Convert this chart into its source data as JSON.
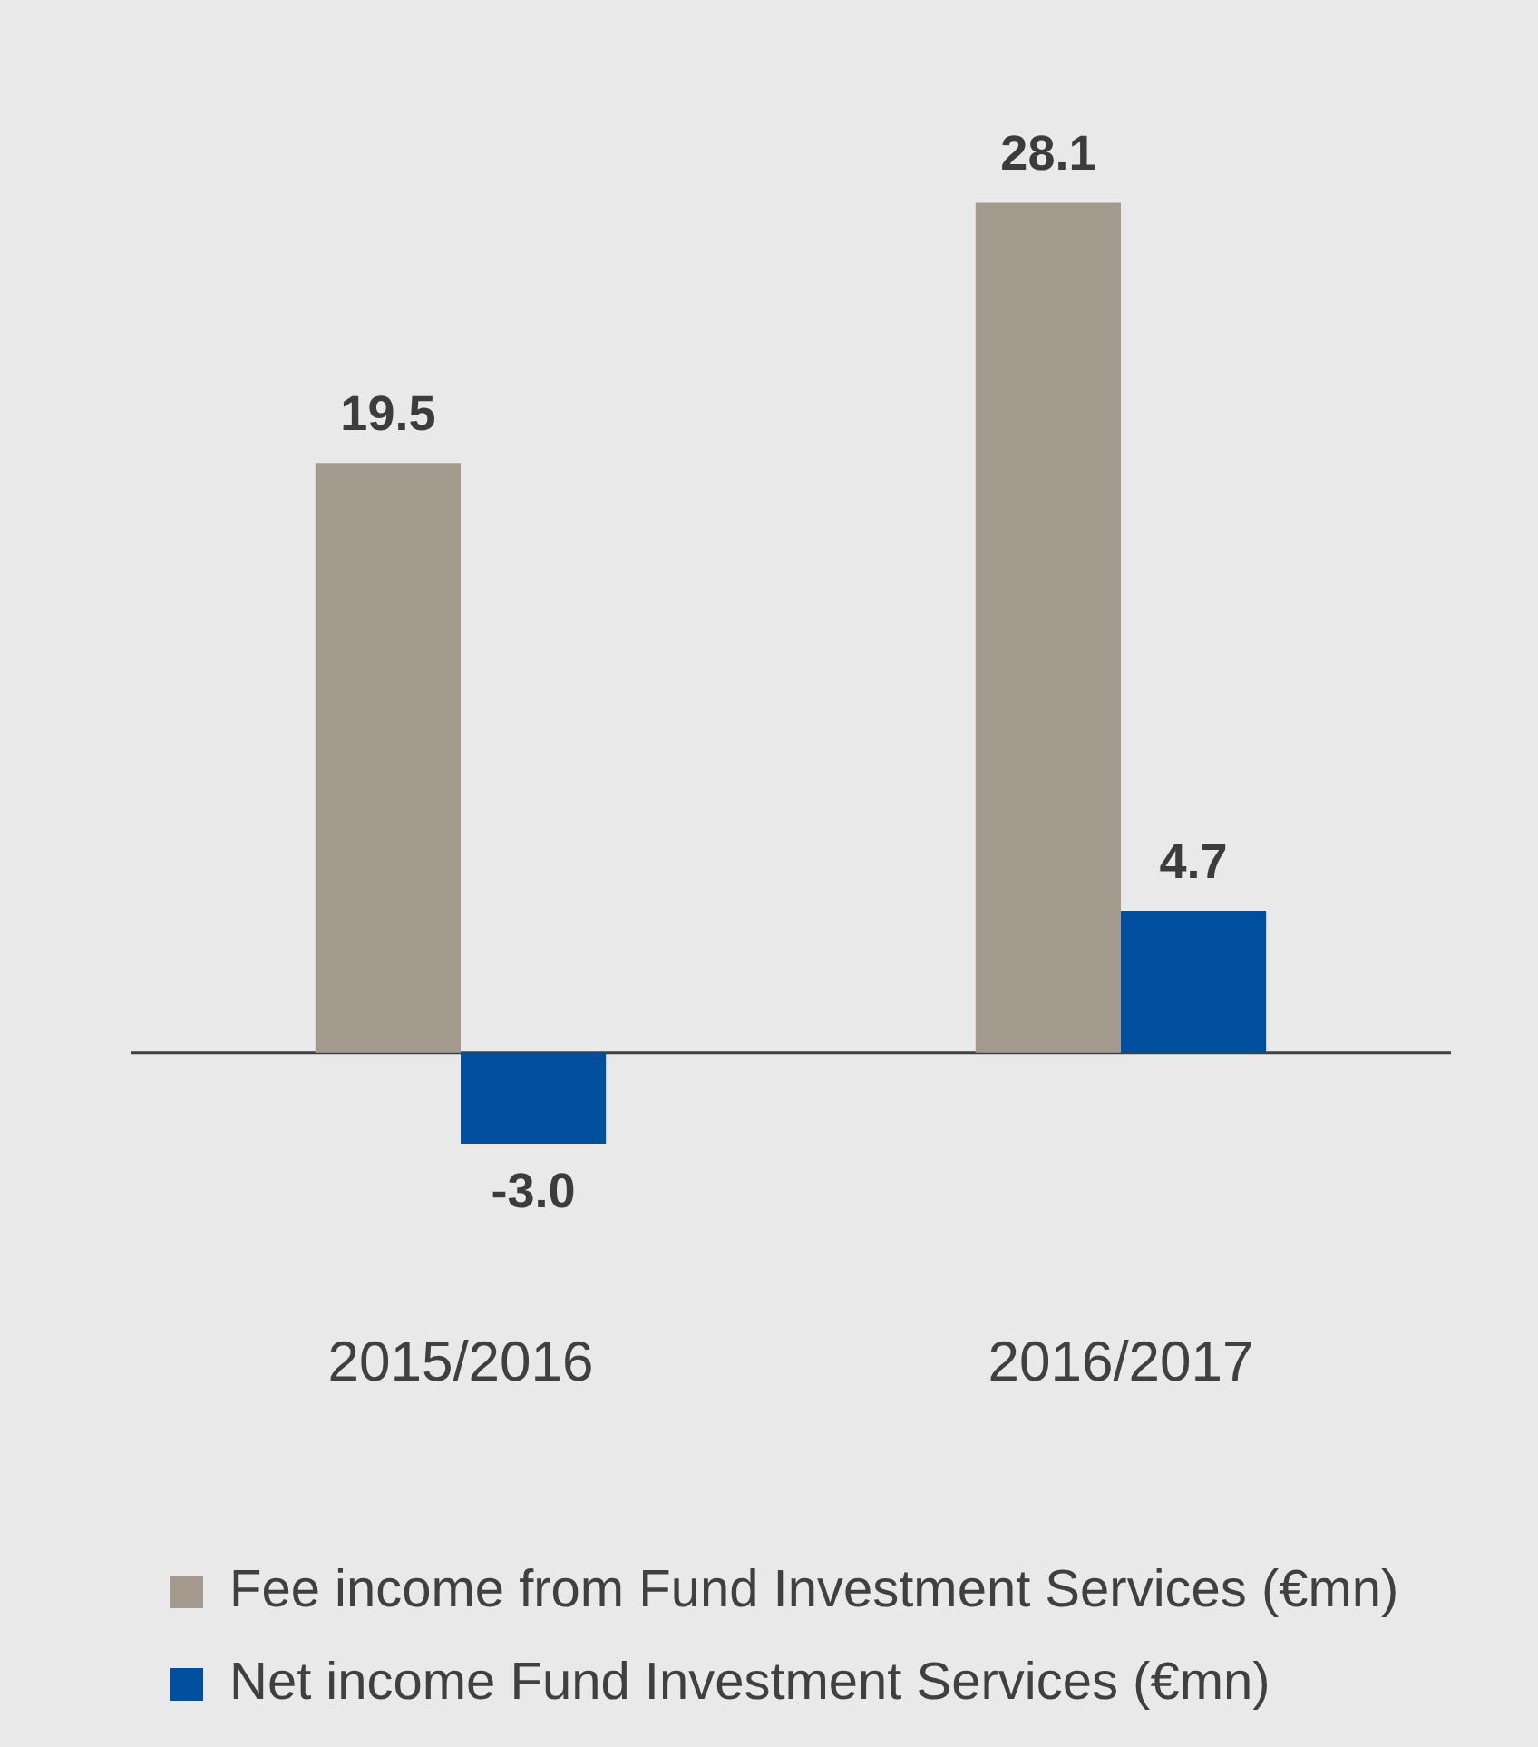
{
  "chart_data": {
    "type": "bar",
    "categories": [
      "2015/2016",
      "2016/2017"
    ],
    "series": [
      {
        "name": "Fee income from Fund Investment Services (€mn)",
        "color": "#a39a8d",
        "values": [
          19.5,
          28.1
        ],
        "value_labels": [
          "19.5",
          "28.1"
        ]
      },
      {
        "name": "Net income Fund Investment Services (€mn)",
        "color": "#004f9f",
        "values": [
          -3.0,
          4.7
        ],
        "value_labels": [
          "-3.0",
          "4.7"
        ]
      }
    ],
    "legend": "bottom",
    "grid": false
  }
}
